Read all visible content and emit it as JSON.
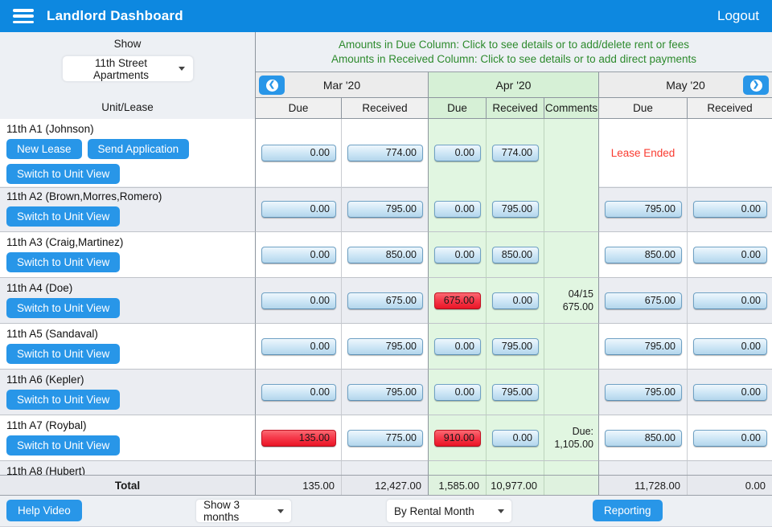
{
  "header": {
    "title": "Landlord Dashboard",
    "logout_label": "Logout"
  },
  "left_panel": {
    "show_label": "Show",
    "property_selected": "11th Street Apartments",
    "unit_lease_label": "Unit/Lease"
  },
  "instructions": {
    "line1": "Amounts in Due Column: Click to see details or to add/delete rent or fees",
    "line2": "Amounts in Received Column: Click to see details or to add direct payments"
  },
  "months": [
    {
      "label": "Mar '20"
    },
    {
      "label": "Apr '20"
    },
    {
      "label": "May '20"
    }
  ],
  "columns": [
    "Due",
    "Received",
    "Due",
    "Received",
    "Comments",
    "Due",
    "Received"
  ],
  "icons": {
    "menu": "menu-icon",
    "prev": "chevron-left-icon",
    "next": "chevron-right-icon"
  },
  "rows": [
    {
      "unit": "11th A1 (Johnson)",
      "buttons": [
        "New Lease",
        "Send Application",
        "Switch to Unit View"
      ],
      "mar_due": "0.00",
      "mar_due_red": false,
      "mar_received": "774.00",
      "apr_due": "0.00",
      "apr_due_red": false,
      "apr_received": "774.00",
      "comment_lines": [],
      "may_due": "",
      "may_received": "",
      "may_note": "Lease Ended"
    },
    {
      "unit": "11th A2 (Brown,Morres,Romero)",
      "buttons": [
        "Switch to Unit View"
      ],
      "mar_due": "0.00",
      "mar_due_red": false,
      "mar_received": "795.00",
      "apr_due": "0.00",
      "apr_due_red": false,
      "apr_received": "795.00",
      "comment_lines": [],
      "may_due": "795.00",
      "may_received": "0.00",
      "may_note": ""
    },
    {
      "unit": "11th A3 (Craig,Martinez)",
      "buttons": [
        "Switch to Unit View"
      ],
      "mar_due": "0.00",
      "mar_due_red": false,
      "mar_received": "850.00",
      "apr_due": "0.00",
      "apr_due_red": false,
      "apr_received": "850.00",
      "comment_lines": [],
      "may_due": "850.00",
      "may_received": "0.00",
      "may_note": ""
    },
    {
      "unit": "11th A4 (Doe)",
      "buttons": [
        "Switch to Unit View"
      ],
      "mar_due": "0.00",
      "mar_due_red": false,
      "mar_received": "675.00",
      "apr_due": "675.00",
      "apr_due_red": true,
      "apr_received": "0.00",
      "comment_lines": [
        "04/15",
        "675.00"
      ],
      "may_due": "675.00",
      "may_received": "0.00",
      "may_note": ""
    },
    {
      "unit": "11th A5 (Sandaval)",
      "buttons": [
        "Switch to Unit View"
      ],
      "mar_due": "0.00",
      "mar_due_red": false,
      "mar_received": "795.00",
      "apr_due": "0.00",
      "apr_due_red": false,
      "apr_received": "795.00",
      "comment_lines": [],
      "may_due": "795.00",
      "may_received": "0.00",
      "may_note": ""
    },
    {
      "unit": "11th A6 (Kepler)",
      "buttons": [
        "Switch to Unit View"
      ],
      "mar_due": "0.00",
      "mar_due_red": false,
      "mar_received": "795.00",
      "apr_due": "0.00",
      "apr_due_red": false,
      "apr_received": "795.00",
      "comment_lines": [],
      "may_due": "795.00",
      "may_received": "0.00",
      "may_note": ""
    },
    {
      "unit": "11th A7 (Roybal)",
      "buttons": [
        "Switch to Unit View"
      ],
      "mar_due": "135.00",
      "mar_due_red": true,
      "mar_received": "775.00",
      "apr_due": "910.00",
      "apr_due_red": true,
      "apr_received": "0.00",
      "comment_lines": [
        "Due:",
        "1,105.00"
      ],
      "may_due": "850.00",
      "may_received": "0.00",
      "may_note": ""
    },
    {
      "unit": "11th A8 (Hubert)",
      "buttons": [],
      "mar_due": "",
      "mar_due_red": false,
      "mar_received": "",
      "apr_due": "",
      "apr_due_red": false,
      "apr_received": "",
      "comment_lines": [],
      "may_due": "",
      "may_received": "",
      "may_note": ""
    }
  ],
  "total": {
    "label": "Total",
    "mar_due": "135.00",
    "mar_received": "12,427.00",
    "apr_due": "1,585.00",
    "apr_received": "10,977.00",
    "comments": "",
    "may_due": "11,728.00",
    "may_received": "0.00"
  },
  "toolbar": {
    "help_video_label": "Help Video",
    "show_months_selected": "Show 3 months",
    "by_rental_selected": "By Rental Month",
    "reporting_label": "Reporting"
  },
  "colors": {
    "appbar_blue": "#0d88e0",
    "button_blue": "#2896e8",
    "instruction_green": "#2d8a2d",
    "april_green_bg": "#e1f6e1",
    "alert_red": "#f93b30",
    "due_pill_red": "#ea1526"
  }
}
